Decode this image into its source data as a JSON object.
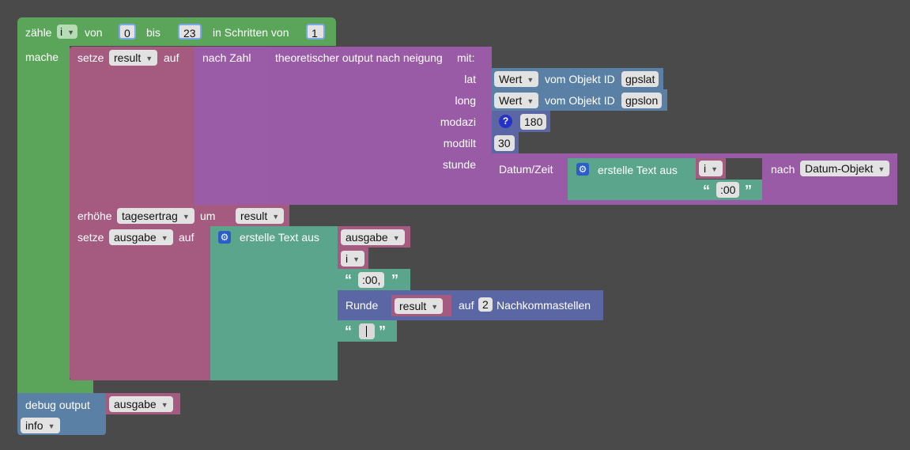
{
  "colors": {
    "loop_green": "#5ba55b",
    "variable_pink": "#a55b80",
    "math_purple": "#9a5ca6",
    "function_purple": "#995ba5",
    "text_teal": "#5ba58c",
    "object_blue": "#5b80a5",
    "round_indigo": "#5b67a5",
    "field_light": "#e2e2e2"
  },
  "loop": {
    "keyword": "zähle",
    "var": "i",
    "from_label": "von",
    "from": "0",
    "to_label": "bis",
    "to": "23",
    "step_label": "in Schritten von",
    "step": "1",
    "do_label": "mache"
  },
  "set_result": {
    "keyword": "setze",
    "var": "result",
    "to_label": "auf",
    "tonumber_label": "nach Zahl",
    "function": {
      "name_label": "theoretischer output nach neigung",
      "with_label": "mit:",
      "params": {
        "lat": "lat",
        "long": "long",
        "modazi": "modazi",
        "modtilt": "modtilt",
        "stunde": "stunde"
      },
      "lat_value": {
        "attr": "Wert",
        "of_label": "vom Objekt ID",
        "id": "gpslat"
      },
      "long_value": {
        "attr": "Wert",
        "of_label": "vom Objekt ID",
        "id": "gpslon"
      },
      "modazi_value": "180",
      "modtilt_value": "30",
      "stunde_value": {
        "datetime_label": "Datum/Zeit",
        "join_label": "erstelle Text aus",
        "var": "i",
        "text": ":00",
        "to_label": "nach",
        "format": "Datum-Objekt"
      }
    }
  },
  "increment": {
    "keyword": "erhöhe",
    "var": "tagesertrag",
    "by_label": "um",
    "value_var": "result"
  },
  "set_ausgabe": {
    "keyword": "setze",
    "var": "ausgabe",
    "to_label": "auf",
    "join_label": "erstelle Text aus",
    "items": {
      "v1": "ausgabe",
      "v2": "i",
      "text": ":00,",
      "round_label": "Runde",
      "round_var": "result",
      "round_to_label": "auf",
      "digits": "2",
      "decimals_label": "Nachkommastellen"
    }
  },
  "debug": {
    "label": "debug output",
    "var": "ausgabe",
    "level": "info"
  }
}
